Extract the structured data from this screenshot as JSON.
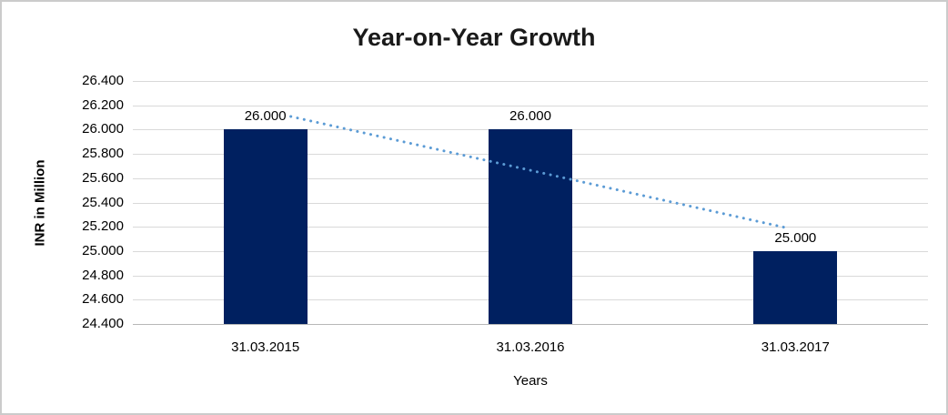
{
  "chart_data": {
    "type": "bar",
    "title": "Year-on-Year Growth",
    "categories": [
      "31.03.2015",
      "31.03.2016",
      "31.03.2017"
    ],
    "values": [
      26.0,
      26.0,
      25.0
    ],
    "data_labels": [
      "26.000",
      "26.000",
      "25.000"
    ],
    "xlabel": "Years",
    "ylabel": "INR in Million",
    "ylim": [
      24.4,
      26.4
    ],
    "ytick_step": 0.2,
    "ytick_labels": [
      "26.400",
      "26.200",
      "26.000",
      "25.800",
      "25.600",
      "25.400",
      "25.200",
      "25.000",
      "24.800",
      "24.600",
      "24.400"
    ],
    "grid": true,
    "legend": "none",
    "bar_color": "#002060",
    "gridline_color": "#d9d9d9",
    "axis_line_color": "#b7b7b7",
    "trend_line": {
      "style": "dotted",
      "color": "#5b9bd5",
      "start": {
        "category_index": 0,
        "value": 26.155
      },
      "end": {
        "category_index": 2,
        "value": 25.175
      }
    }
  }
}
